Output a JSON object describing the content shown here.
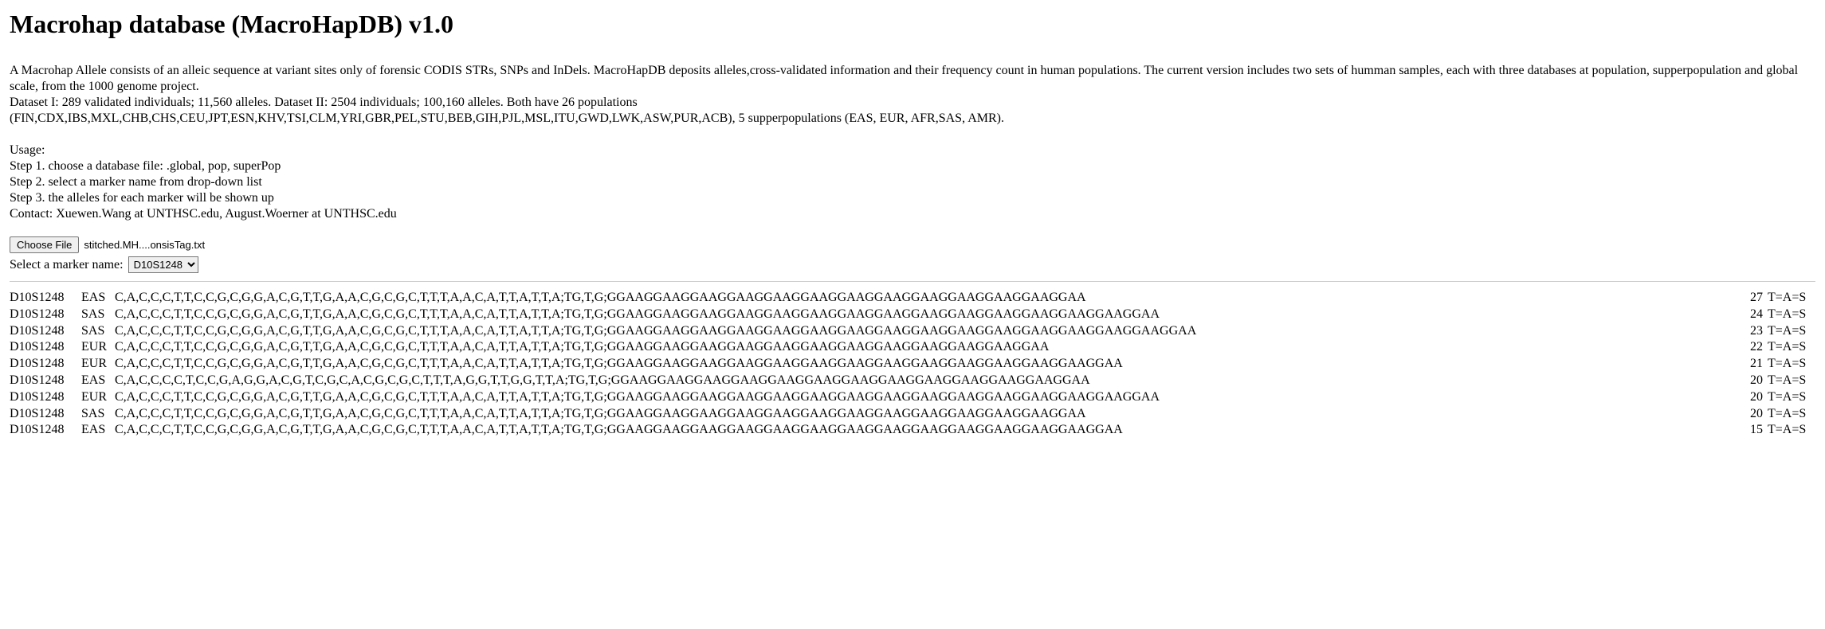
{
  "title": "Macrohap database (MacroHapDB) v1.0",
  "description_lines": [
    "A Macrohap Allele consists of an alleic sequence at variant sites only of forensic CODIS STRs, SNPs and InDels. MacroHapDB deposits alleles,cross-validated information and their frequency count in human populations. The current version includes two sets of humman samples, each with three databases at population, supperpopulation and global scale, from the 1000 genome project.",
    "Dataset I: 289 validated individuals; 11,560 alleles. Dataset II: 2504 individuals; 100,160 alleles. Both have 26 populations",
    "(FIN,CDX,IBS,MXL,CHB,CHS,CEU,JPT,ESN,KHV,TSI,CLM,YRI,GBR,PEL,STU,BEB,GIH,PJL,MSL,ITU,GWD,LWK,ASW,PUR,ACB), 5 supperpopulations (EAS, EUR, AFR,SAS, AMR)."
  ],
  "usage_header": "Usage:",
  "usage_lines": [
    "Step 1. choose a database file: .global, pop, superPop",
    "Step 2. select a marker name from drop-down list",
    "Step 3. the alleles for each marker will be shown up",
    "Contact: Xuewen.Wang at UNTHSC.edu, August.Woerner at UNTHSC.edu"
  ],
  "file": {
    "button_label": "Choose File",
    "file_name": "stitched.MH....onsisTag.txt"
  },
  "marker": {
    "label": "Select a marker name:",
    "selected": "D10S1248"
  },
  "alleles": [
    {
      "marker": "D10S1248",
      "pop": "EAS",
      "seq": "C,A,C,C,C,T,T,C,C,G,C,G,G,A,C,G,T,T,G,A,A,C,G,C,G,C,T,T,T,A,A,C,A,T,T,A,T,T,A;TG,T,G;GGAAGGAAGGAAGGAAGGAAGGAAGGAAGGAAGGAAGGAAGGAAGGAAGGAA",
      "count": "27",
      "tag": "T=A=S"
    },
    {
      "marker": "D10S1248",
      "pop": "SAS",
      "seq": "C,A,C,C,C,T,T,C,C,G,C,G,G,A,C,G,T,T,G,A,A,C,G,C,G,C,T,T,T,A,A,C,A,T,T,A,T,T,A;TG,T,G;GGAAGGAAGGAAGGAAGGAAGGAAGGAAGGAAGGAAGGAAGGAAGGAAGGAAGGAAGGAA",
      "count": "24",
      "tag": "T=A=S"
    },
    {
      "marker": "D10S1248",
      "pop": "SAS",
      "seq": "C,A,C,C,C,T,T,C,C,G,C,G,G,A,C,G,T,T,G,A,A,C,G,C,G,C,T,T,T,A,A,C,A,T,T,A,T,T,A;TG,T,G;GGAAGGAAGGAAGGAAGGAAGGAAGGAAGGAAGGAAGGAAGGAAGGAAGGAAGGAAGGAAGGAA",
      "count": "23",
      "tag": "T=A=S"
    },
    {
      "marker": "D10S1248",
      "pop": "EUR",
      "seq": "C,A,C,C,C,T,T,C,C,G,C,G,G,A,C,G,T,T,G,A,A,C,G,C,G,C,T,T,T,A,A,C,A,T,T,A,T,T,A;TG,T,G;GGAAGGAAGGAAGGAAGGAAGGAAGGAAGGAAGGAAGGAAGGAAGGAA",
      "count": "22",
      "tag": "T=A=S"
    },
    {
      "marker": "D10S1248",
      "pop": "EUR",
      "seq": "C,A,C,C,C,T,T,C,C,G,C,G,G,A,C,G,T,T,G,A,A,C,G,C,G,C,T,T,T,A,A,C,A,T,T,A,T,T,A;TG,T,G;GGAAGGAAGGAAGGAAGGAAGGAAGGAAGGAAGGAAGGAAGGAAGGAAGGAAGGAA",
      "count": "21",
      "tag": "T=A=S"
    },
    {
      "marker": "D10S1248",
      "pop": "EAS",
      "seq": "C,A,C,C,C,C,T,C,C,G,A,G,G,A,C,G,T,C,G,C,A,C,G,C,G,C,T,T,T,A,G,G,T,T,G,G,T,T,A;TG,T,G;GGAAGGAAGGAAGGAAGGAAGGAAGGAAGGAAGGAAGGAAGGAAGGAAGGAA",
      "count": "20",
      "tag": "T=A=S"
    },
    {
      "marker": "D10S1248",
      "pop": "EUR",
      "seq": "C,A,C,C,C,T,T,C,C,G,C,G,G,A,C,G,T,T,G,A,A,C,G,C,G,C,T,T,T,A,A,C,A,T,T,A,T,T,A;TG,T,G;GGAAGGAAGGAAGGAAGGAAGGAAGGAAGGAAGGAAGGAAGGAAGGAAGGAAGGAAGGAA",
      "count": "20",
      "tag": "T=A=S"
    },
    {
      "marker": "D10S1248",
      "pop": "SAS",
      "seq": "C,A,C,C,C,T,T,C,C,G,C,G,G,A,C,G,T,T,G,A,A,C,G,C,G,C,T,T,T,A,A,C,A,T,T,A,T,T,A;TG,T,G;GGAAGGAAGGAAGGAAGGAAGGAAGGAAGGAAGGAAGGAAGGAAGGAAGGAA",
      "count": "20",
      "tag": "T=A=S"
    },
    {
      "marker": "D10S1248",
      "pop": "EAS",
      "seq": "C,A,C,C,C,T,T,C,C,G,C,G,G,A,C,G,T,T,G,A,A,C,G,C,G,C,T,T,T,A,A,C,A,T,T,A,T,T,A;TG,T,G;GGAAGGAAGGAAGGAAGGAAGGAAGGAAGGAAGGAAGGAAGGAAGGAAGGAAGGAA",
      "count": "15",
      "tag": "T=A=S"
    }
  ]
}
